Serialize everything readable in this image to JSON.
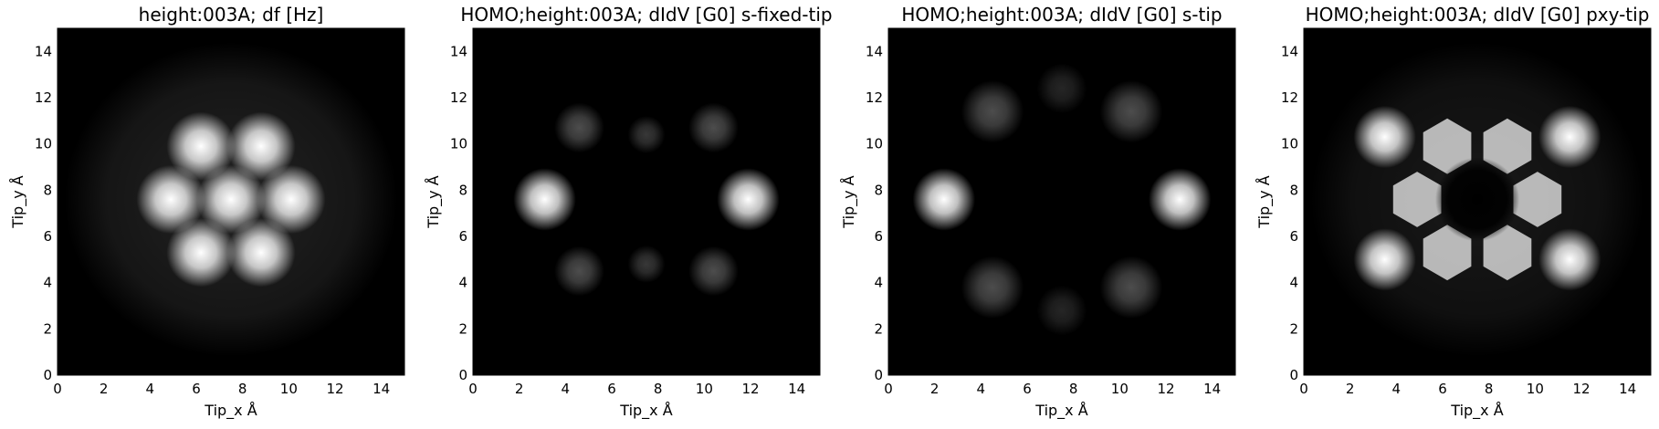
{
  "chart_data": [
    {
      "type": "heatmap",
      "title": "height:003A; df [Hz]",
      "xlabel": "Tip_x Å",
      "ylabel": "Tip_y Å",
      "xlim": [
        0,
        15
      ],
      "ylim": [
        0,
        15
      ],
      "xticks": [
        "0",
        "2",
        "4",
        "6",
        "8",
        "10",
        "12",
        "14"
      ],
      "yticks": [
        "0",
        "2",
        "4",
        "6",
        "8",
        "10",
        "12",
        "14"
      ],
      "colormap": "gray",
      "background_glow": 0.14,
      "features": [
        {
          "kind": "bright-lobe",
          "x": 6.2,
          "y": 9.9,
          "intensity": 1.0,
          "radius": 1.1
        },
        {
          "kind": "bright-lobe",
          "x": 8.8,
          "y": 9.9,
          "intensity": 1.0,
          "radius": 1.1
        },
        {
          "kind": "bright-lobe",
          "x": 4.9,
          "y": 7.6,
          "intensity": 1.0,
          "radius": 1.1
        },
        {
          "kind": "bright-lobe",
          "x": 7.5,
          "y": 7.6,
          "intensity": 1.0,
          "radius": 1.1
        },
        {
          "kind": "bright-lobe",
          "x": 10.1,
          "y": 7.6,
          "intensity": 1.0,
          "radius": 1.1
        },
        {
          "kind": "bright-lobe",
          "x": 6.2,
          "y": 5.3,
          "intensity": 1.0,
          "radius": 1.1
        },
        {
          "kind": "bright-lobe",
          "x": 8.8,
          "y": 5.3,
          "intensity": 1.0,
          "radius": 1.1
        }
      ]
    },
    {
      "type": "heatmap",
      "title": "HOMO;height:003A; dIdV [G0] s-fixed-tip",
      "xlabel": "Tip_x Å",
      "ylabel": "Tip_y Å",
      "xlim": [
        0,
        15
      ],
      "ylim": [
        0,
        15
      ],
      "xticks": [
        "0",
        "2",
        "4",
        "6",
        "8",
        "10",
        "12",
        "14"
      ],
      "yticks": [
        "0",
        "2",
        "4",
        "6",
        "8",
        "10",
        "12",
        "14"
      ],
      "colormap": "gray",
      "background_glow": 0,
      "features": [
        {
          "kind": "bright-lobe",
          "x": 3.1,
          "y": 7.6,
          "intensity": 1.0,
          "radius": 1.0
        },
        {
          "kind": "bright-lobe",
          "x": 11.9,
          "y": 7.6,
          "intensity": 1.0,
          "radius": 1.0
        },
        {
          "kind": "faint-lobe",
          "x": 4.6,
          "y": 10.7,
          "intensity": 0.3,
          "radius": 0.8
        },
        {
          "kind": "faint-lobe",
          "x": 10.4,
          "y": 10.7,
          "intensity": 0.3,
          "radius": 0.8
        },
        {
          "kind": "faint-lobe",
          "x": 4.6,
          "y": 4.5,
          "intensity": 0.3,
          "radius": 0.8
        },
        {
          "kind": "faint-lobe",
          "x": 10.4,
          "y": 4.5,
          "intensity": 0.3,
          "radius": 0.8
        },
        {
          "kind": "faint-lobe",
          "x": 7.5,
          "y": 10.4,
          "intensity": 0.22,
          "radius": 0.6
        },
        {
          "kind": "faint-lobe",
          "x": 7.5,
          "y": 4.8,
          "intensity": 0.22,
          "radius": 0.6
        }
      ]
    },
    {
      "type": "heatmap",
      "title": "HOMO;height:003A; dIdV [G0] s-tip",
      "xlabel": "Tip_x Å",
      "ylabel": "Tip_y Å",
      "xlim": [
        0,
        15
      ],
      "ylim": [
        0,
        15
      ],
      "xticks": [
        "0",
        "2",
        "4",
        "6",
        "8",
        "10",
        "12",
        "14"
      ],
      "yticks": [
        "0",
        "2",
        "4",
        "6",
        "8",
        "10",
        "12",
        "14"
      ],
      "colormap": "gray",
      "background_glow": 0,
      "features": [
        {
          "kind": "bright-lobe",
          "x": 2.4,
          "y": 7.6,
          "intensity": 1.0,
          "radius": 1.0
        },
        {
          "kind": "bright-lobe",
          "x": 12.6,
          "y": 7.6,
          "intensity": 1.0,
          "radius": 1.0
        },
        {
          "kind": "faint-lobe",
          "x": 4.5,
          "y": 11.4,
          "intensity": 0.3,
          "radius": 1.0
        },
        {
          "kind": "faint-lobe",
          "x": 10.5,
          "y": 11.4,
          "intensity": 0.3,
          "radius": 1.0
        },
        {
          "kind": "faint-lobe",
          "x": 4.5,
          "y": 3.8,
          "intensity": 0.3,
          "radius": 1.0
        },
        {
          "kind": "faint-lobe",
          "x": 10.5,
          "y": 3.8,
          "intensity": 0.3,
          "radius": 1.0
        },
        {
          "kind": "faint-lobe",
          "x": 7.5,
          "y": 12.4,
          "intensity": 0.15,
          "radius": 0.8
        },
        {
          "kind": "faint-lobe",
          "x": 7.5,
          "y": 2.8,
          "intensity": 0.15,
          "radius": 0.8
        }
      ]
    },
    {
      "type": "heatmap",
      "title": "HOMO;height:003A; dIdV [G0] pxy-tip",
      "xlabel": "Tip_x Å",
      "ylabel": "Tip_y Å",
      "xlim": [
        0,
        15
      ],
      "ylim": [
        0,
        15
      ],
      "xticks": [
        "0",
        "2",
        "4",
        "6",
        "8",
        "10",
        "12",
        "14"
      ],
      "yticks": [
        "0",
        "2",
        "4",
        "6",
        "8",
        "10",
        "12",
        "14"
      ],
      "colormap": "gray",
      "background_glow": 0.1,
      "features": [
        {
          "kind": "bright-lobe",
          "x": 3.5,
          "y": 10.3,
          "intensity": 1.0,
          "radius": 1.0
        },
        {
          "kind": "bright-lobe",
          "x": 11.5,
          "y": 10.3,
          "intensity": 1.0,
          "radius": 1.0
        },
        {
          "kind": "bright-lobe",
          "x": 3.5,
          "y": 5.0,
          "intensity": 1.0,
          "radius": 1.0
        },
        {
          "kind": "bright-lobe",
          "x": 11.5,
          "y": 5.0,
          "intensity": 1.0,
          "radius": 1.0
        },
        {
          "kind": "grey-ring-lobe",
          "x": 6.2,
          "y": 9.9,
          "intensity": 0.7,
          "radius": 1.2
        },
        {
          "kind": "grey-ring-lobe",
          "x": 8.8,
          "y": 9.9,
          "intensity": 0.7,
          "radius": 1.2
        },
        {
          "kind": "grey-ring-lobe",
          "x": 4.9,
          "y": 7.6,
          "intensity": 0.7,
          "radius": 1.2
        },
        {
          "kind": "grey-ring-lobe",
          "x": 10.1,
          "y": 7.6,
          "intensity": 0.7,
          "radius": 1.2
        },
        {
          "kind": "grey-ring-lobe",
          "x": 6.2,
          "y": 5.3,
          "intensity": 0.7,
          "radius": 1.2
        },
        {
          "kind": "grey-ring-lobe",
          "x": 8.8,
          "y": 5.3,
          "intensity": 0.7,
          "radius": 1.2
        },
        {
          "kind": "dark-center",
          "x": 7.5,
          "y": 7.6,
          "intensity": 0.0,
          "radius": 1.3
        }
      ]
    }
  ]
}
